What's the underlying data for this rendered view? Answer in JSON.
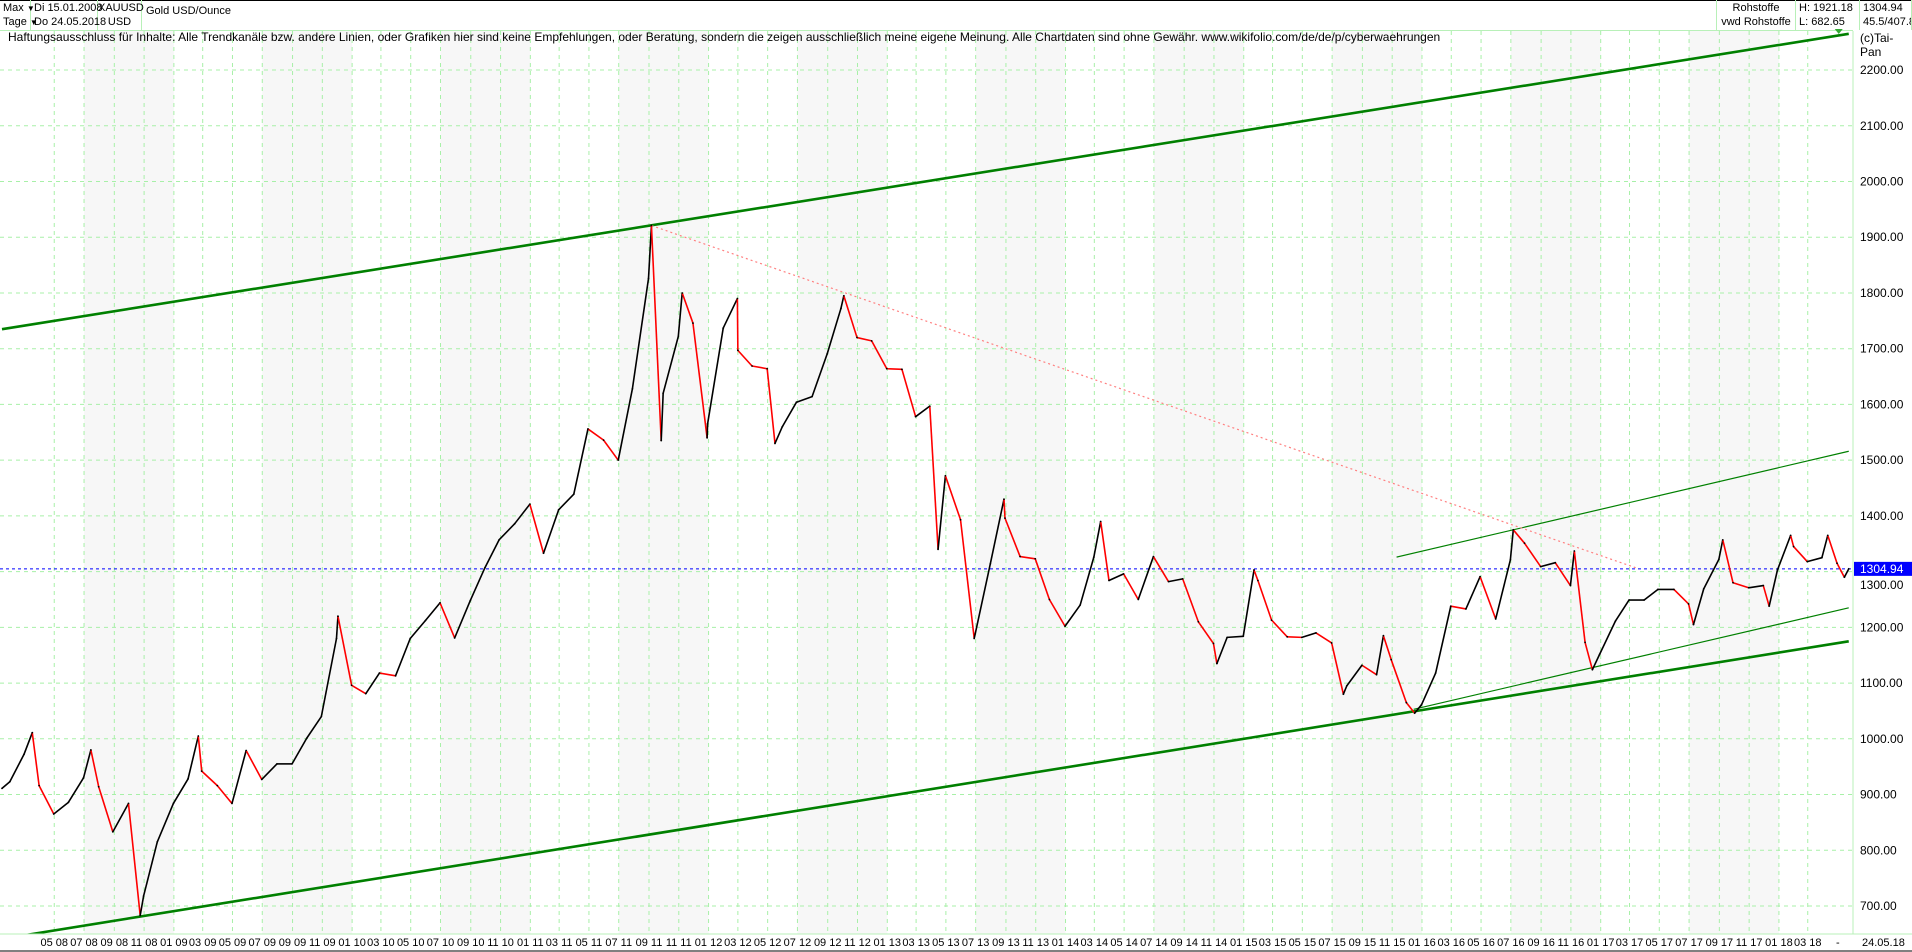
{
  "header": {
    "range_select": "Max",
    "interval_select": "Tage",
    "date_from": "Di 15.01.2008",
    "date_to": "Do 24.05.2018",
    "symbol": "XAUUSD",
    "currency": "USD",
    "name": "Gold USD/Ounce",
    "group": "Rohstoffe",
    "source": "vwd Rohstoffe",
    "high": "H: 1921.18",
    "low": "L: 682.65",
    "last": "1304.94",
    "extra": "45.5/407.8"
  },
  "disclaimer": "Haftungsausschluss für Inhalte: Alle Trendkanäle bzw. andere Linien, oder Grafiken hier sind keine Empfehlungen, oder Beratung, sondern die zeigen ausschließlich meine eigene Meinung. Alle Chartdaten sind ohne Gewähr.  www.wikifolio.com/de/de/p/cyberwaehrungen",
  "copyright": "(c)Tai-Pan",
  "chart_data": {
    "type": "line",
    "title": "Gold USD/Ounce",
    "xlim": [
      "2008-01-15",
      "2018-05-24"
    ],
    "ylim": [
      650,
      2280
    ],
    "grid": true,
    "y_ticks": [
      "700.00",
      "800.00",
      "900.00",
      "1000.00",
      "1100.00",
      "1200.00",
      "1300.00",
      "1400.00",
      "1500.00",
      "1600.00",
      "1700.00",
      "1800.00",
      "1900.00",
      "2000.00",
      "2100.00",
      "2200.00"
    ],
    "x_tick_labels": [
      "05 08",
      "07 08",
      "09 08",
      "11 08",
      "01 09",
      "03 09",
      "05 09",
      "07 09",
      "09 09",
      "11 09",
      "01 10",
      "03 10",
      "05 10",
      "07 10",
      "09 10",
      "11 10",
      "01 11",
      "03 11",
      "05 11",
      "07 11",
      "09 11",
      "11 11",
      "01 12",
      "03 12",
      "05 12",
      "07 12",
      "09 12",
      "11 12",
      "01 13",
      "03 13",
      "05 13",
      "07 13",
      "09 13",
      "11 13",
      "01 14",
      "03 14",
      "05 14",
      "07 14",
      "09 14",
      "11 14",
      "01 15",
      "03 15",
      "05 15",
      "07 15",
      "09 15",
      "11 15",
      "01 16",
      "03 16",
      "05 16",
      "07 16",
      "09 16",
      "11 16",
      "01 17",
      "03 17",
      "05 17",
      "07 17",
      "09 17",
      "11 17",
      "01 18",
      "03 18"
    ],
    "x_end_label": "-",
    "x_last_date_label": "24.05.18",
    "last_price": 1304.94,
    "last_price_label": "1304.94",
    "colors": {
      "up": "#000000",
      "down": "#ff0000",
      "trend": "#008000",
      "resistance": "#ff8080",
      "last_line": "#0000ff",
      "grid": "#a8f0a8"
    },
    "series": [
      {
        "values": [
          [
            "2008-01-15",
            911
          ],
          [
            "2008-01-31",
            923
          ],
          [
            "2008-02-29",
            972
          ],
          [
            "2008-03-17",
            1011
          ],
          [
            "2008-03-31",
            916
          ],
          [
            "2008-04-30",
            865
          ],
          [
            "2008-05-30",
            886
          ],
          [
            "2008-06-30",
            930
          ],
          [
            "2008-07-15",
            980
          ],
          [
            "2008-07-31",
            914
          ],
          [
            "2008-08-29",
            833
          ],
          [
            "2008-09-30",
            884
          ],
          [
            "2008-10-24",
            683
          ],
          [
            "2008-10-31",
            718
          ],
          [
            "2008-11-28",
            815
          ],
          [
            "2008-12-31",
            884
          ],
          [
            "2009-01-30",
            928
          ],
          [
            "2009-02-20",
            1005
          ],
          [
            "2009-02-27",
            942
          ],
          [
            "2009-03-31",
            916
          ],
          [
            "2009-04-30",
            884
          ],
          [
            "2009-05-29",
            979
          ],
          [
            "2009-06-30",
            927
          ],
          [
            "2009-07-31",
            955
          ],
          [
            "2009-08-31",
            955
          ],
          [
            "2009-09-30",
            1001
          ],
          [
            "2009-10-30",
            1040
          ],
          [
            "2009-11-30",
            1180
          ],
          [
            "2009-12-03",
            1220
          ],
          [
            "2009-12-31",
            1096
          ],
          [
            "2010-01-29",
            1081
          ],
          [
            "2010-02-26",
            1118
          ],
          [
            "2010-03-31",
            1113
          ],
          [
            "2010-04-30",
            1180
          ],
          [
            "2010-05-31",
            1212
          ],
          [
            "2010-06-30",
            1244
          ],
          [
            "2010-07-30",
            1181
          ],
          [
            "2010-08-31",
            1248
          ],
          [
            "2010-09-30",
            1307
          ],
          [
            "2010-10-29",
            1357
          ],
          [
            "2010-11-30",
            1386
          ],
          [
            "2010-12-31",
            1421
          ],
          [
            "2011-01-28",
            1333
          ],
          [
            "2011-02-28",
            1411
          ],
          [
            "2011-03-31",
            1439
          ],
          [
            "2011-04-29",
            1556
          ],
          [
            "2011-05-31",
            1536
          ],
          [
            "2011-06-30",
            1500
          ],
          [
            "2011-07-29",
            1628
          ],
          [
            "2011-08-31",
            1826
          ],
          [
            "2011-09-06",
            1921
          ],
          [
            "2011-09-26",
            1535
          ],
          [
            "2011-09-30",
            1620
          ],
          [
            "2011-10-31",
            1722
          ],
          [
            "2011-11-08",
            1800
          ],
          [
            "2011-11-30",
            1746
          ],
          [
            "2011-12-29",
            1540
          ],
          [
            "2011-12-30",
            1565
          ],
          [
            "2012-01-31",
            1737
          ],
          [
            "2012-02-29",
            1790
          ],
          [
            "2012-03-01",
            1697
          ],
          [
            "2012-03-30",
            1669
          ],
          [
            "2012-04-30",
            1664
          ],
          [
            "2012-05-16",
            1530
          ],
          [
            "2012-05-31",
            1560
          ],
          [
            "2012-06-29",
            1604
          ],
          [
            "2012-07-31",
            1614
          ],
          [
            "2012-08-31",
            1691
          ],
          [
            "2012-09-28",
            1772
          ],
          [
            "2012-10-04",
            1795
          ],
          [
            "2012-10-31",
            1720
          ],
          [
            "2012-11-30",
            1714
          ],
          [
            "2012-12-31",
            1664
          ],
          [
            "2013-01-31",
            1663
          ],
          [
            "2013-02-28",
            1578
          ],
          [
            "2013-03-29",
            1597
          ],
          [
            "2013-04-15",
            1340
          ],
          [
            "2013-04-30",
            1472
          ],
          [
            "2013-05-31",
            1393
          ],
          [
            "2013-06-28",
            1180
          ],
          [
            "2013-07-31",
            1314
          ],
          [
            "2013-08-28",
            1430
          ],
          [
            "2013-08-30",
            1396
          ],
          [
            "2013-09-30",
            1327
          ],
          [
            "2013-10-31",
            1323
          ],
          [
            "2013-11-29",
            1250
          ],
          [
            "2013-12-31",
            1202
          ],
          [
            "2014-01-31",
            1240
          ],
          [
            "2014-02-28",
            1326
          ],
          [
            "2014-03-14",
            1390
          ],
          [
            "2014-03-31",
            1284
          ],
          [
            "2014-04-30",
            1296
          ],
          [
            "2014-05-30",
            1250
          ],
          [
            "2014-06-30",
            1327
          ],
          [
            "2014-07-31",
            1282
          ],
          [
            "2014-08-29",
            1287
          ],
          [
            "2014-09-30",
            1210
          ],
          [
            "2014-10-31",
            1171
          ],
          [
            "2014-11-07",
            1135
          ],
          [
            "2014-11-28",
            1182
          ],
          [
            "2014-12-31",
            1184
          ],
          [
            "2015-01-22",
            1303
          ],
          [
            "2015-01-30",
            1284
          ],
          [
            "2015-02-27",
            1213
          ],
          [
            "2015-03-31",
            1183
          ],
          [
            "2015-04-30",
            1182
          ],
          [
            "2015-05-29",
            1190
          ],
          [
            "2015-06-30",
            1172
          ],
          [
            "2015-07-24",
            1080
          ],
          [
            "2015-07-31",
            1095
          ],
          [
            "2015-08-31",
            1132
          ],
          [
            "2015-09-30",
            1115
          ],
          [
            "2015-10-14",
            1185
          ],
          [
            "2015-10-30",
            1142
          ],
          [
            "2015-11-30",
            1065
          ],
          [
            "2015-12-17",
            1046
          ],
          [
            "2015-12-31",
            1061
          ],
          [
            "2016-01-29",
            1118
          ],
          [
            "2016-02-29",
            1238
          ],
          [
            "2016-03-31",
            1233
          ],
          [
            "2016-04-29",
            1291
          ],
          [
            "2016-05-31",
            1215
          ],
          [
            "2016-06-30",
            1321
          ],
          [
            "2016-07-06",
            1375
          ],
          [
            "2016-07-29",
            1351
          ],
          [
            "2016-08-31",
            1309
          ],
          [
            "2016-09-30",
            1316
          ],
          [
            "2016-10-31",
            1275
          ],
          [
            "2016-11-08",
            1337
          ],
          [
            "2016-11-30",
            1173
          ],
          [
            "2016-12-15",
            1124
          ],
          [
            "2016-12-30",
            1152
          ],
          [
            "2017-01-31",
            1211
          ],
          [
            "2017-02-28",
            1249
          ],
          [
            "2017-03-31",
            1249
          ],
          [
            "2017-04-28",
            1268
          ],
          [
            "2017-05-31",
            1268
          ],
          [
            "2017-06-30",
            1242
          ],
          [
            "2017-07-10",
            1205
          ],
          [
            "2017-07-31",
            1269
          ],
          [
            "2017-08-31",
            1322
          ],
          [
            "2017-09-08",
            1357
          ],
          [
            "2017-09-29",
            1280
          ],
          [
            "2017-10-31",
            1271
          ],
          [
            "2017-11-30",
            1275
          ],
          [
            "2017-12-12",
            1238
          ],
          [
            "2017-12-29",
            1303
          ],
          [
            "2018-01-25",
            1365
          ],
          [
            "2018-01-31",
            1345
          ],
          [
            "2018-02-28",
            1318
          ],
          [
            "2018-03-30",
            1325
          ],
          [
            "2018-04-11",
            1365
          ],
          [
            "2018-04-30",
            1315
          ],
          [
            "2018-05-15",
            1290
          ],
          [
            "2018-05-24",
            1305
          ]
        ]
      }
    ],
    "trendlines": [
      {
        "kind": "channel-upper",
        "from": [
          "2008-01-15",
          1735
        ],
        "to": [
          "2018-05-24",
          2265
        ]
      },
      {
        "kind": "channel-lower",
        "from": [
          "2008-01-15",
          641
        ],
        "to": [
          "2018-05-24",
          1175
        ]
      },
      {
        "kind": "short-upper",
        "from": [
          "2015-11-10",
          1326
        ],
        "to": [
          "2018-05-24",
          1516
        ]
      },
      {
        "kind": "short-lower",
        "from": [
          "2015-12-15",
          1053
        ],
        "to": [
          "2018-05-24",
          1235
        ]
      },
      {
        "kind": "resistance-dotted",
        "from": [
          "2011-09-06",
          1921
        ],
        "to": [
          "2017-03-20",
          1305
        ]
      }
    ]
  }
}
